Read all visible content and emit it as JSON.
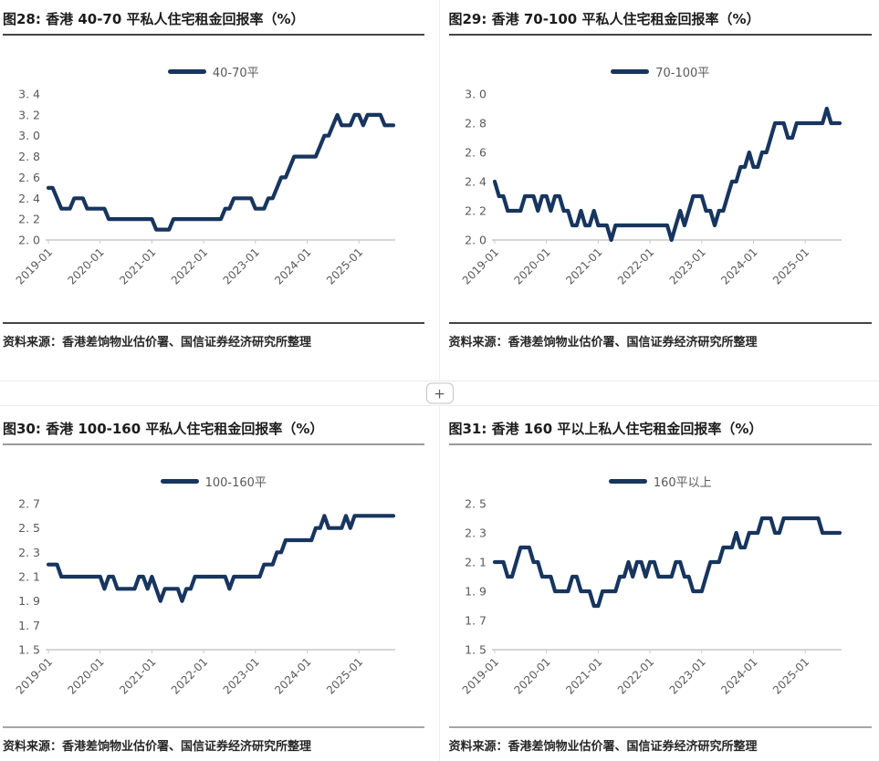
{
  "page": {
    "expand_button_label": "+"
  },
  "colors": {
    "series_navy": "#17355E",
    "tick_text": "#595959",
    "axis_line": "#c9c9c9"
  },
  "chart_data": [
    {
      "type": "line",
      "fig_label": "图28",
      "title": "图28: 香港 40-70 平私人住宅租金回报率（%）",
      "legend": "40-70平",
      "series_color": "#17355E",
      "source": "资料来源：香港差饷物业估价署、国信证券经济研究所整理",
      "x_range": [
        "2019-01",
        "2025-09"
      ],
      "x_tick_labels": [
        "2019-01",
        "2020-01",
        "2021-01",
        "2022-01",
        "2023-01",
        "2024-01",
        "2025-01"
      ],
      "ylim": [
        2.0,
        3.4
      ],
      "ytick_step": 0.2,
      "grid": false,
      "legend_position": "top-center",
      "monthly_values": [
        2.5,
        2.5,
        2.4,
        2.3,
        2.3,
        2.3,
        2.4,
        2.4,
        2.4,
        2.3,
        2.3,
        2.3,
        2.3,
        2.3,
        2.2,
        2.2,
        2.2,
        2.2,
        2.2,
        2.2,
        2.2,
        2.2,
        2.2,
        2.2,
        2.2,
        2.1,
        2.1,
        2.1,
        2.1,
        2.2,
        2.2,
        2.2,
        2.2,
        2.2,
        2.2,
        2.2,
        2.2,
        2.2,
        2.2,
        2.2,
        2.2,
        2.3,
        2.3,
        2.4,
        2.4,
        2.4,
        2.4,
        2.4,
        2.3,
        2.3,
        2.3,
        2.4,
        2.4,
        2.5,
        2.6,
        2.6,
        2.7,
        2.8,
        2.8,
        2.8,
        2.8,
        2.8,
        2.8,
        2.9,
        3.0,
        3.0,
        3.1,
        3.2,
        3.1,
        3.1,
        3.1,
        3.2,
        3.2,
        3.1,
        3.2,
        3.2,
        3.2,
        3.2,
        3.1,
        3.1,
        3.1
      ]
    },
    {
      "type": "line",
      "fig_label": "图29",
      "title": "图29: 香港 70-100 平私人住宅租金回报率（%）",
      "legend": "70-100平",
      "series_color": "#17355E",
      "source": "资料来源：香港差饷物业估价署、国信证券经济研究所整理",
      "x_range": [
        "2019-01",
        "2025-09"
      ],
      "x_tick_labels": [
        "2019-01",
        "2020-01",
        "2021-01",
        "2022-01",
        "2023-01",
        "2024-01",
        "2025-01"
      ],
      "ylim": [
        2.0,
        3.0
      ],
      "ytick_step": 0.2,
      "grid": false,
      "legend_position": "top-center",
      "monthly_values": [
        2.4,
        2.3,
        2.3,
        2.2,
        2.2,
        2.2,
        2.2,
        2.3,
        2.3,
        2.3,
        2.2,
        2.3,
        2.3,
        2.2,
        2.3,
        2.3,
        2.2,
        2.2,
        2.1,
        2.1,
        2.2,
        2.1,
        2.1,
        2.2,
        2.1,
        2.1,
        2.1,
        2.0,
        2.1,
        2.1,
        2.1,
        2.1,
        2.1,
        2.1,
        2.1,
        2.1,
        2.1,
        2.1,
        2.1,
        2.1,
        2.1,
        2.0,
        2.1,
        2.2,
        2.1,
        2.2,
        2.3,
        2.3,
        2.3,
        2.2,
        2.2,
        2.1,
        2.2,
        2.2,
        2.3,
        2.4,
        2.4,
        2.5,
        2.5,
        2.6,
        2.5,
        2.5,
        2.6,
        2.6,
        2.7,
        2.8,
        2.8,
        2.8,
        2.7,
        2.7,
        2.8,
        2.8,
        2.8,
        2.8,
        2.8,
        2.8,
        2.8,
        2.9,
        2.8,
        2.8,
        2.8
      ]
    },
    {
      "type": "line",
      "fig_label": "图30",
      "title": "图30: 香港 100-160 平私人住宅租金回报率（%）",
      "legend": "100-160平",
      "series_color": "#17355E",
      "source": "资料来源：香港差饷物业估价署、国信证券经济研究所整理",
      "x_range": [
        "2019-01",
        "2025-09"
      ],
      "x_tick_labels": [
        "2019-01",
        "2020-01",
        "2021-01",
        "2022-01",
        "2023-01",
        "2024-01",
        "2025-01"
      ],
      "ylim": [
        1.5,
        2.7
      ],
      "ytick_step": 0.2,
      "grid": false,
      "legend_position": "top-center",
      "monthly_values": [
        2.2,
        2.2,
        2.2,
        2.1,
        2.1,
        2.1,
        2.1,
        2.1,
        2.1,
        2.1,
        2.1,
        2.1,
        2.1,
        2.0,
        2.1,
        2.1,
        2.0,
        2.0,
        2.0,
        2.0,
        2.0,
        2.1,
        2.1,
        2.0,
        2.1,
        2.0,
        1.9,
        2.0,
        2.0,
        2.0,
        2.0,
        1.9,
        2.0,
        2.0,
        2.1,
        2.1,
        2.1,
        2.1,
        2.1,
        2.1,
        2.1,
        2.1,
        2.0,
        2.1,
        2.1,
        2.1,
        2.1,
        2.1,
        2.1,
        2.1,
        2.2,
        2.2,
        2.2,
        2.3,
        2.3,
        2.4,
        2.4,
        2.4,
        2.4,
        2.4,
        2.4,
        2.4,
        2.5,
        2.5,
        2.6,
        2.5,
        2.5,
        2.5,
        2.5,
        2.6,
        2.5,
        2.6,
        2.6,
        2.6,
        2.6,
        2.6,
        2.6,
        2.6,
        2.6,
        2.6,
        2.6
      ]
    },
    {
      "type": "line",
      "fig_label": "图31",
      "title": "图31: 香港 160 平以上私人住宅租金回报率（%）",
      "legend": "160平以上",
      "series_color": "#17355E",
      "source": "资料来源：香港差饷物业估价署、国信证券经济研究所整理",
      "x_range": [
        "2019-01",
        "2025-09"
      ],
      "x_tick_labels": [
        "2019-01",
        "2020-01",
        "2021-01",
        "2022-01",
        "2023-01",
        "2024-01",
        "2025-01"
      ],
      "ylim": [
        1.5,
        2.5
      ],
      "ytick_step": 0.2,
      "grid": false,
      "legend_position": "top-center",
      "monthly_values": [
        2.1,
        2.1,
        2.1,
        2.0,
        2.0,
        2.1,
        2.2,
        2.2,
        2.2,
        2.1,
        2.1,
        2.0,
        2.0,
        2.0,
        1.9,
        1.9,
        1.9,
        1.9,
        2.0,
        2.0,
        1.9,
        1.9,
        1.9,
        1.8,
        1.8,
        1.9,
        1.9,
        1.9,
        1.9,
        2.0,
        2.0,
        2.1,
        2.0,
        2.1,
        2.1,
        2.0,
        2.1,
        2.1,
        2.0,
        2.0,
        2.0,
        2.0,
        2.1,
        2.1,
        2.0,
        2.0,
        1.9,
        1.9,
        1.9,
        2.0,
        2.1,
        2.1,
        2.1,
        2.2,
        2.2,
        2.2,
        2.3,
        2.2,
        2.2,
        2.3,
        2.3,
        2.3,
        2.4,
        2.4,
        2.4,
        2.3,
        2.3,
        2.4,
        2.4,
        2.4,
        2.4,
        2.4,
        2.4,
        2.4,
        2.4,
        2.4,
        2.3,
        2.3,
        2.3,
        2.3,
        2.3
      ]
    }
  ]
}
